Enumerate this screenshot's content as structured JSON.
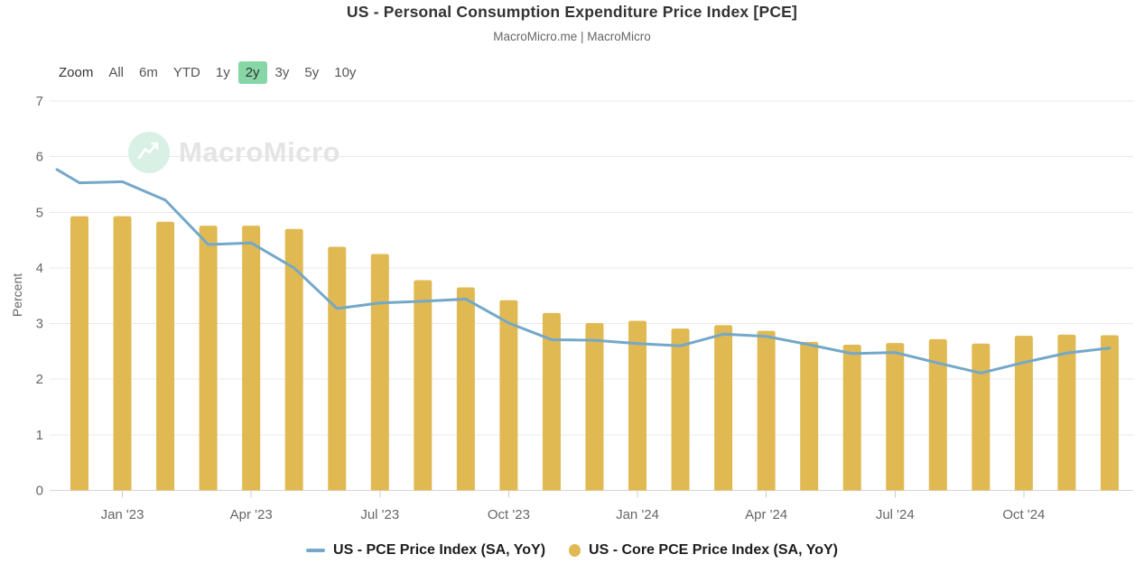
{
  "title": "US - Personal Consumption Expenditure Price Index [PCE]",
  "subtitle": "MacroMicro.me | MacroMicro",
  "watermark": {
    "brand": "MacroMicro"
  },
  "toolbar": {
    "zoom_label": "Zoom",
    "ranges": [
      "All",
      "6m",
      "YTD",
      "1y",
      "2y",
      "3y",
      "5y",
      "10y"
    ],
    "selected": "2y"
  },
  "colors": {
    "bar": "#e0b952",
    "line": "#74a8c8",
    "selected_range_bg": "#86d6a6",
    "grid": "#e9e9e9",
    "axis": "#d6d6d6",
    "tick": "#cccccc",
    "text_muted": "#666666",
    "title_text": "#333333",
    "watermark_mint": "#d9f0e5"
  },
  "chart_data": {
    "type": "bar+line combo",
    "title": "US - Personal Consumption Expenditure Price Index [PCE]",
    "xlabel": "",
    "ylabel": "Percent",
    "ylim": [
      0,
      7
    ],
    "yticks": [
      0,
      1,
      2,
      3,
      4,
      5,
      6,
      7
    ],
    "grid": "horizontal only",
    "legend_position": "bottom",
    "categories": [
      "Dec '22",
      "Jan '23",
      "Feb '23",
      "Mar '23",
      "Apr '23",
      "May '23",
      "Jun '23",
      "Jul '23",
      "Aug '23",
      "Sep '23",
      "Oct '23",
      "Nov '23",
      "Dec '23",
      "Jan '24",
      "Feb '24",
      "Mar '24",
      "Apr '24",
      "May '24",
      "Jun '24",
      "Jul '24",
      "Aug '24",
      "Sep '24",
      "Oct '24",
      "Nov '24",
      "Dec '24"
    ],
    "x_ticks": [
      {
        "label": "Jan '23",
        "month_index": 1
      },
      {
        "label": "Apr '23",
        "month_index": 4
      },
      {
        "label": "Jul '23",
        "month_index": 7
      },
      {
        "label": "Oct '23",
        "month_index": 10
      },
      {
        "label": "Jan '24",
        "month_index": 13
      },
      {
        "label": "Apr '24",
        "month_index": 16
      },
      {
        "label": "Jul '24",
        "month_index": 19
      },
      {
        "label": "Oct '24",
        "month_index": 22
      }
    ],
    "series": [
      {
        "name": "US - PCE Price Index (SA, YoY)",
        "type": "line",
        "color": "#74a8c8",
        "edge_value": 5.77,
        "values": [
          5.53,
          5.55,
          5.22,
          4.42,
          4.45,
          4.0,
          3.27,
          3.37,
          3.4,
          3.44,
          3.01,
          2.71,
          2.7,
          2.64,
          2.6,
          2.81,
          2.77,
          2.62,
          2.46,
          2.48,
          2.29,
          2.11,
          2.3,
          2.47,
          2.56
        ]
      },
      {
        "name": "US - Core PCE Price Index (SA, YoY)",
        "type": "bar",
        "color": "#e0b952",
        "values": [
          4.93,
          4.93,
          4.83,
          4.76,
          4.76,
          4.7,
          4.38,
          4.25,
          3.78,
          3.65,
          3.42,
          3.19,
          3.01,
          3.05,
          2.91,
          2.97,
          2.87,
          2.67,
          2.62,
          2.65,
          2.72,
          2.64,
          2.78,
          2.8,
          2.79
        ]
      }
    ]
  }
}
